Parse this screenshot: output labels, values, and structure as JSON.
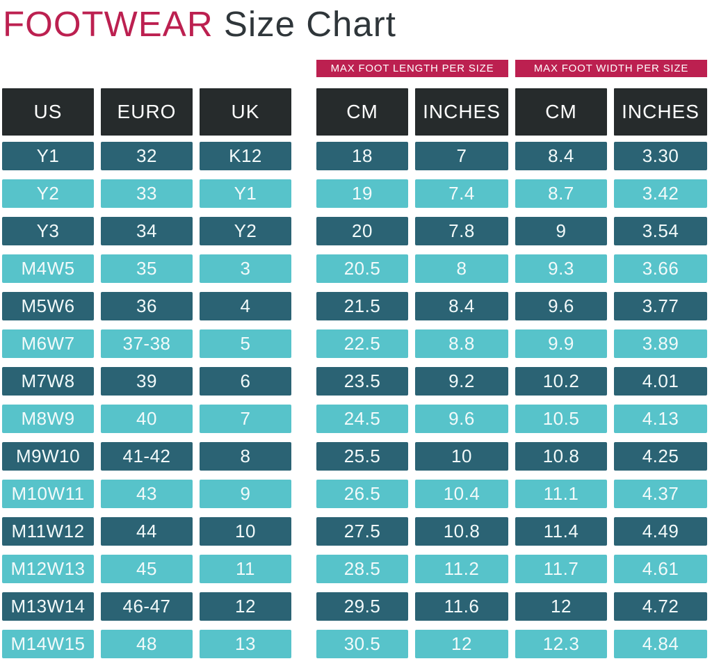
{
  "page_title": {
    "highlight": "FOOTWEAR",
    "rest": " Size Chart"
  },
  "group_banners": {
    "length_label": "MAX FOOT LENGTH PER SIZE",
    "width_label": "MAX FOOT WIDTH PER SIZE"
  },
  "column_headers": [
    "US",
    "EURO",
    "UK",
    "CM",
    "INCHES",
    "CM",
    "INCHES"
  ],
  "colors": {
    "accent": "#bc2050",
    "header_bg": "#262b2c",
    "row_dark": "#2b6374",
    "row_light": "#57c3ca",
    "title_dark": "#2f363a",
    "cell_text": "#f2fafa"
  },
  "chart_data": {
    "type": "table",
    "title": "FOOTWEAR Size Chart",
    "column_groups": [
      {
        "label": "",
        "columns": [
          "US",
          "EURO",
          "UK"
        ]
      },
      {
        "label": "MAX FOOT LENGTH PER SIZE",
        "columns": [
          "CM",
          "INCHES"
        ]
      },
      {
        "label": "MAX FOOT WIDTH PER SIZE",
        "columns": [
          "CM",
          "INCHES"
        ]
      }
    ],
    "columns": [
      "US",
      "EURO",
      "UK",
      "CM",
      "INCHES",
      "CM",
      "INCHES"
    ],
    "rows": [
      [
        "Y1",
        "32",
        "K12",
        "18",
        "7",
        "8.4",
        "3.30"
      ],
      [
        "Y2",
        "33",
        "Y1",
        "19",
        "7.4",
        "8.7",
        "3.42"
      ],
      [
        "Y3",
        "34",
        "Y2",
        "20",
        "7.8",
        "9",
        "3.54"
      ],
      [
        "M4W5",
        "35",
        "3",
        "20.5",
        "8",
        "9.3",
        "3.66"
      ],
      [
        "M5W6",
        "36",
        "4",
        "21.5",
        "8.4",
        "9.6",
        "3.77"
      ],
      [
        "M6W7",
        "37-38",
        "5",
        "22.5",
        "8.8",
        "9.9",
        "3.89"
      ],
      [
        "M7W8",
        "39",
        "6",
        "23.5",
        "9.2",
        "10.2",
        "4.01"
      ],
      [
        "M8W9",
        "40",
        "7",
        "24.5",
        "9.6",
        "10.5",
        "4.13"
      ],
      [
        "M9W10",
        "41-42",
        "8",
        "25.5",
        "10",
        "10.8",
        "4.25"
      ],
      [
        "M10W11",
        "43",
        "9",
        "26.5",
        "10.4",
        "11.1",
        "4.37"
      ],
      [
        "M11W12",
        "44",
        "10",
        "27.5",
        "10.8",
        "11.4",
        "4.49"
      ],
      [
        "M12W13",
        "45",
        "11",
        "28.5",
        "11.2",
        "11.7",
        "4.61"
      ],
      [
        "M13W14",
        "46-47",
        "12",
        "29.5",
        "11.6",
        "12",
        "4.72"
      ],
      [
        "M14W15",
        "48",
        "13",
        "30.5",
        "12",
        "12.3",
        "4.84"
      ]
    ],
    "row_style_pattern": "odd rows dark teal, even rows light teal, starting dark"
  }
}
